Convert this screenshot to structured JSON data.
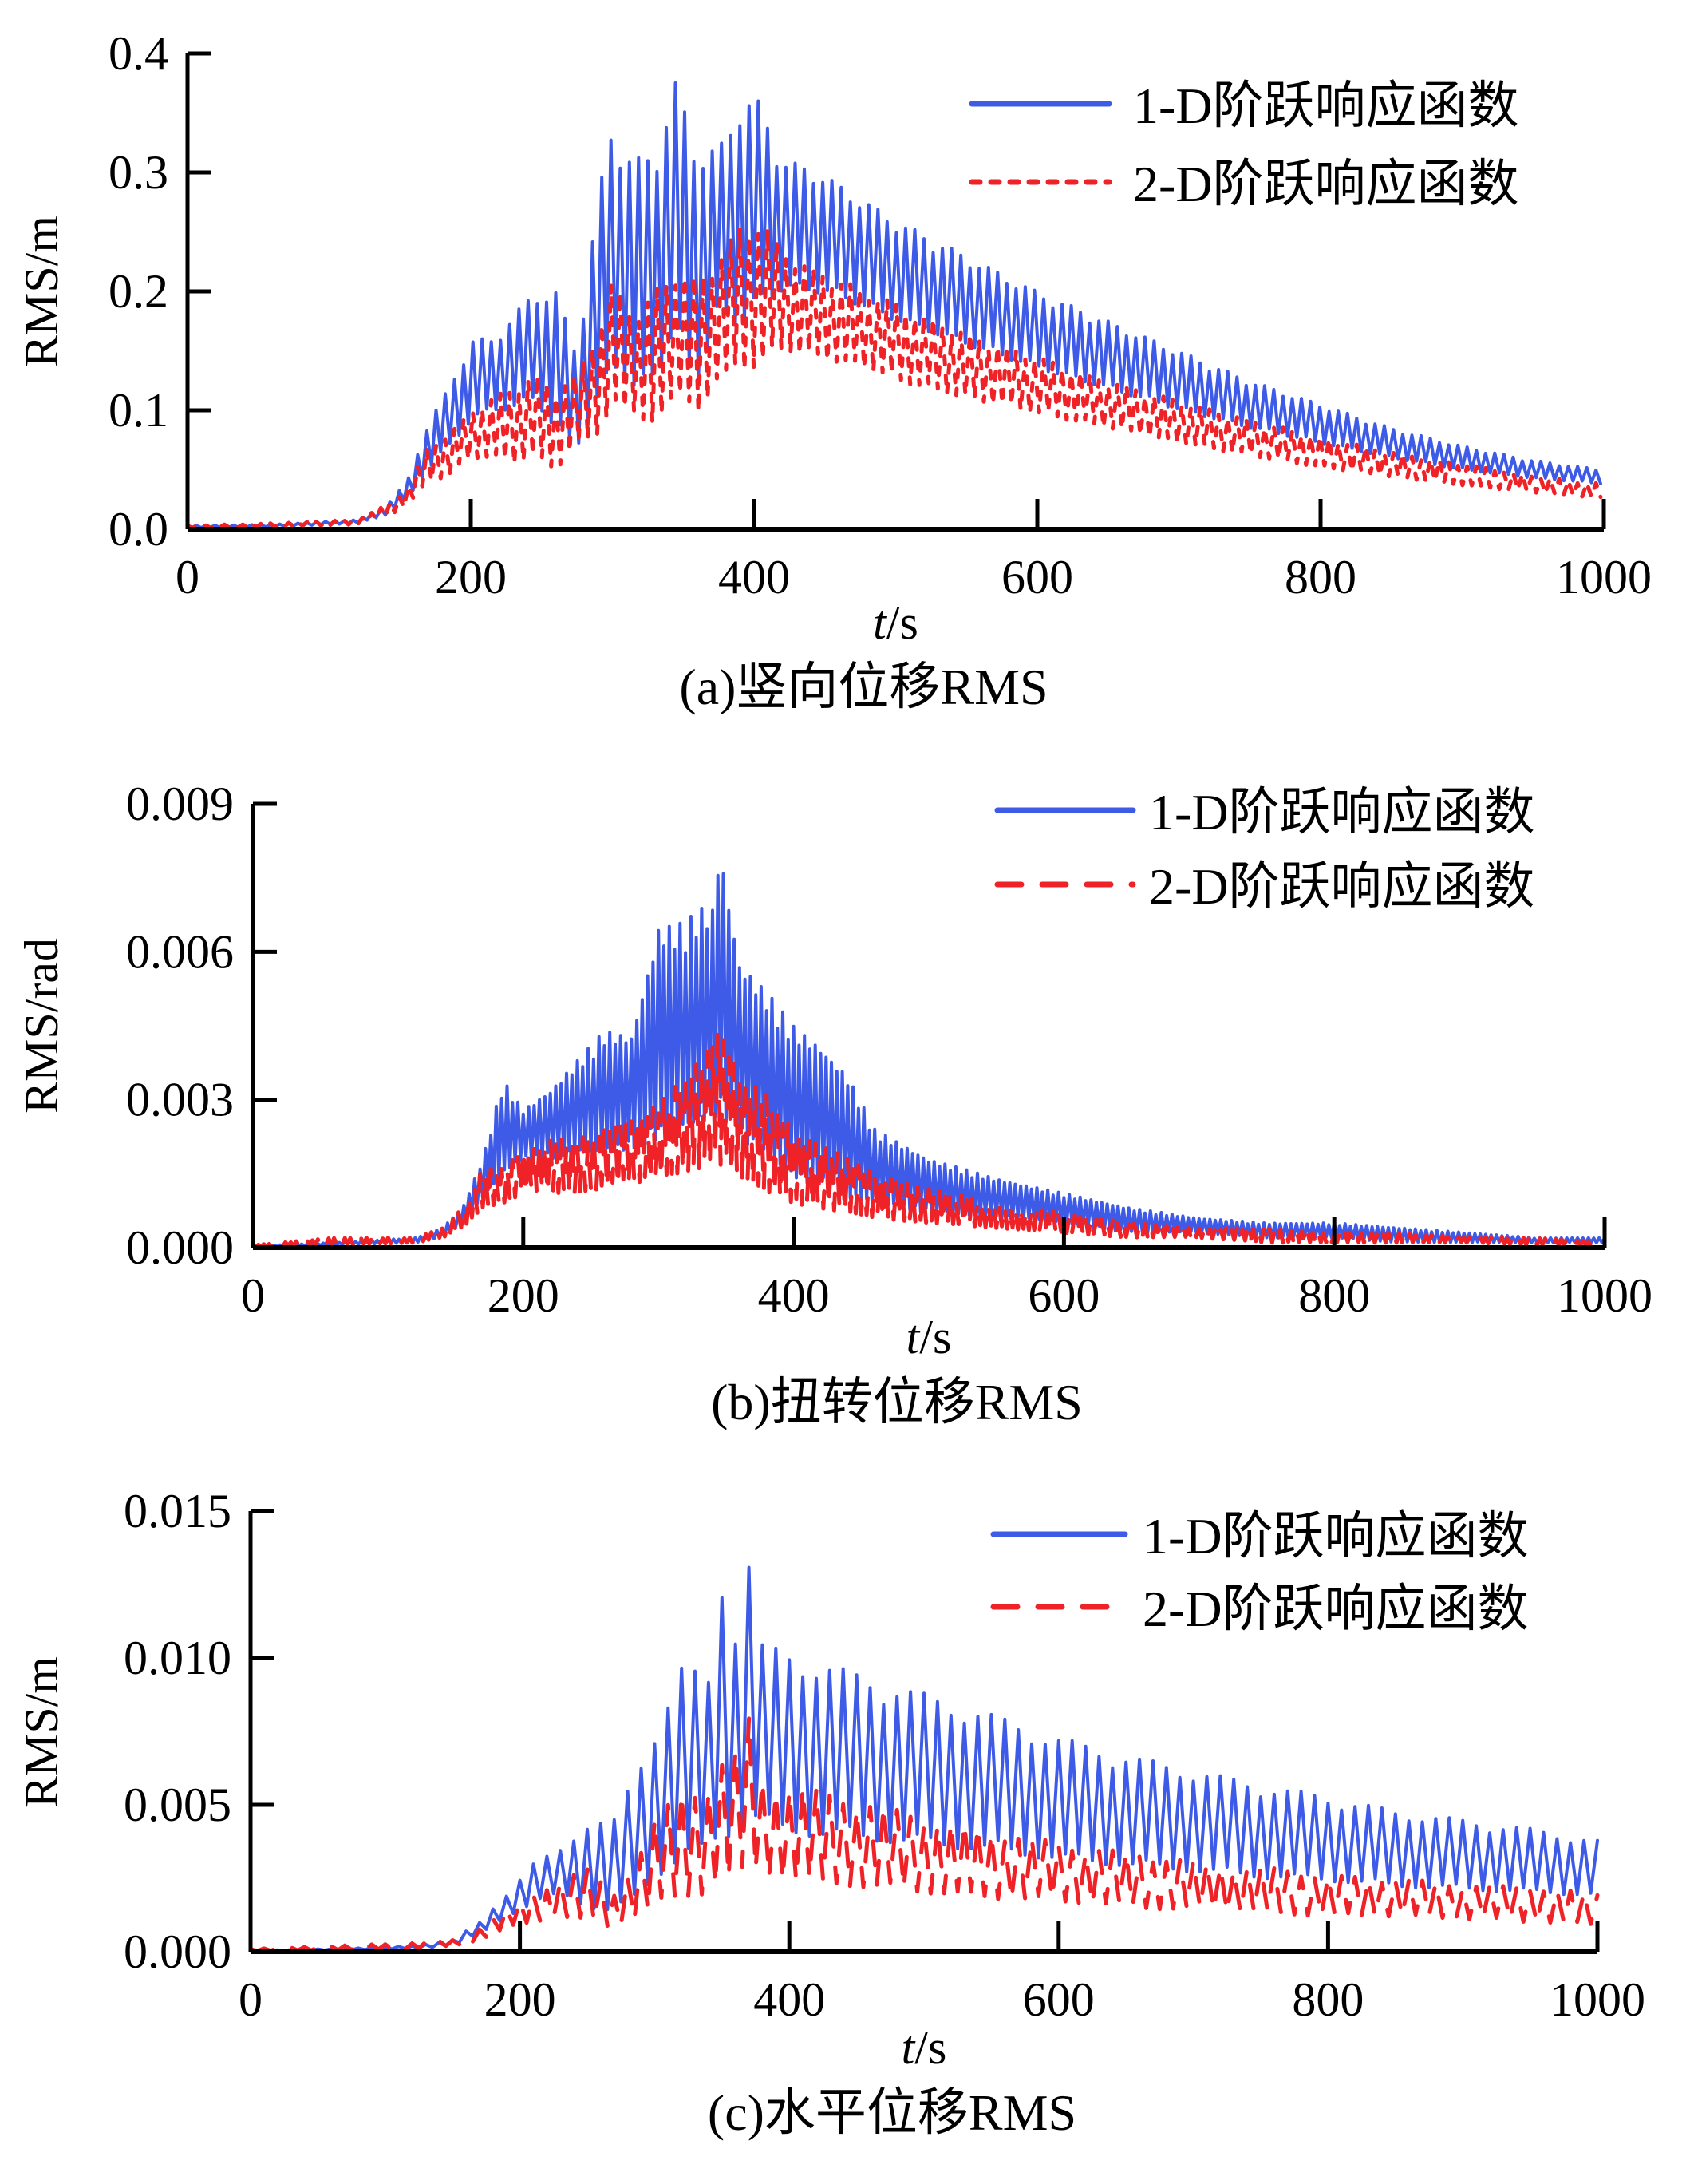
{
  "figure": {
    "legend_labels": [
      "1-D阶跃响应函数",
      "2-D阶跃响应函数"
    ],
    "colors": {
      "series_1d": "#3e5be8",
      "series_2d": "#ee2227",
      "axis": "#000000"
    }
  },
  "chart_data": [
    {
      "id": "a",
      "type": "line",
      "caption": "(a)竖向位移RMS",
      "xlabel_italic": "t",
      "xlabel_unit": "/s",
      "ylabel": "RMS/m",
      "xlim": [
        0,
        1000
      ],
      "ylim": [
        0,
        0.4
      ],
      "xticks": [
        0,
        200,
        400,
        600,
        800,
        1000
      ],
      "xtick_labels": [
        "0",
        "200",
        "400",
        "600",
        "800",
        "1000"
      ],
      "yticks": [
        0,
        0.1,
        0.2,
        0.3,
        0.4
      ],
      "ytick_labels": [
        "0.0",
        "0.1",
        "0.2",
        "0.3",
        "0.4"
      ],
      "legend_position": "top-right",
      "oscillation_period_s": 6.5,
      "x": [
        0,
        60,
        120,
        140,
        155,
        170,
        185,
        200,
        215,
        230,
        245,
        260,
        275,
        290,
        300,
        315,
        330,
        345,
        360,
        375,
        390,
        405,
        420,
        440,
        460,
        480,
        500,
        550,
        600,
        650,
        700,
        750,
        800,
        850,
        900,
        950,
        1000
      ],
      "series": [
        {
          "name": "1-D阶跃响应函数",
          "style": "solid",
          "upper": [
            0.003,
            0.004,
            0.008,
            0.02,
            0.04,
            0.09,
            0.12,
            0.16,
            0.16,
            0.18,
            0.2,
            0.2,
            0.15,
            0.28,
            0.345,
            0.31,
            0.32,
            0.378,
            0.32,
            0.32,
            0.362,
            0.36,
            0.31,
            0.305,
            0.29,
            0.275,
            0.26,
            0.23,
            0.2,
            0.175,
            0.15,
            0.125,
            0.105,
            0.085,
            0.07,
            0.058,
            0.05
          ],
          "lower": [
            0.001,
            0.002,
            0.005,
            0.012,
            0.025,
            0.05,
            0.07,
            0.09,
            0.1,
            0.1,
            0.11,
            0.08,
            0.07,
            0.1,
            0.14,
            0.11,
            0.13,
            0.16,
            0.12,
            0.18,
            0.17,
            0.19,
            0.2,
            0.2,
            0.195,
            0.185,
            0.175,
            0.155,
            0.135,
            0.118,
            0.1,
            0.085,
            0.072,
            0.06,
            0.05,
            0.043,
            0.038
          ]
        },
        {
          "name": "2-D阶跃响应函数",
          "style": "dotted",
          "upper": [
            0.003,
            0.005,
            0.008,
            0.02,
            0.035,
            0.07,
            0.08,
            0.1,
            0.11,
            0.12,
            0.13,
            0.12,
            0.13,
            0.17,
            0.21,
            0.18,
            0.2,
            0.22,
            0.21,
            0.23,
            0.255,
            0.26,
            0.235,
            0.22,
            0.21,
            0.2,
            0.19,
            0.165,
            0.145,
            0.125,
            0.108,
            0.092,
            0.078,
            0.065,
            0.055,
            0.045,
            0.038
          ],
          "lower": [
            0.001,
            0.002,
            0.004,
            0.01,
            0.02,
            0.04,
            0.045,
            0.06,
            0.06,
            0.055,
            0.06,
            0.05,
            0.07,
            0.08,
            0.1,
            0.1,
            0.08,
            0.12,
            0.09,
            0.13,
            0.13,
            0.14,
            0.15,
            0.145,
            0.14,
            0.135,
            0.125,
            0.11,
            0.097,
            0.085,
            0.072,
            0.062,
            0.052,
            0.044,
            0.037,
            0.031,
            0.026
          ]
        }
      ]
    },
    {
      "id": "b",
      "type": "line",
      "caption": "(b)扭转位移RMS",
      "xlabel_italic": "t",
      "xlabel_unit": "/s",
      "ylabel": "RMS/rad",
      "xlim": [
        0,
        1000
      ],
      "ylim": [
        0,
        0.009
      ],
      "xticks": [
        0,
        200,
        400,
        600,
        800,
        1000
      ],
      "xtick_labels": [
        "0",
        "200",
        "400",
        "600",
        "800",
        "1000"
      ],
      "yticks": [
        0,
        0.003,
        0.006,
        0.009
      ],
      "ytick_labels": [
        "0.000",
        "0.003",
        "0.006",
        "0.009"
      ],
      "legend_position": "top-right",
      "oscillation_period_s": 4,
      "x": [
        0,
        60,
        120,
        140,
        155,
        170,
        185,
        200,
        220,
        240,
        260,
        280,
        300,
        320,
        330,
        340,
        345,
        360,
        380,
        400,
        420,
        440,
        460,
        500,
        550,
        600,
        650,
        700,
        750,
        800,
        850,
        900,
        950,
        1000
      ],
      "series": [
        {
          "name": "1-D阶跃响应函数",
          "style": "solid",
          "upper": [
            3e-05,
            0.0001,
            0.0002,
            0.0004,
            0.0008,
            0.0018,
            0.0034,
            0.0028,
            0.0032,
            0.0038,
            0.0044,
            0.0043,
            0.0065,
            0.0066,
            0.0069,
            0.0069,
            0.0082,
            0.0058,
            0.0052,
            0.0045,
            0.0041,
            0.0035,
            0.0024,
            0.0018,
            0.0014,
            0.0011,
            0.0008,
            0.0006,
            0.0005,
            0.0005,
            0.0004,
            0.0003,
            0.0002,
            0.0002
          ],
          "lower": [
            1e-05,
            5e-05,
            0.0001,
            0.0002,
            0.0005,
            0.001,
            0.0015,
            0.0018,
            0.0018,
            0.0019,
            0.0019,
            0.002,
            0.0022,
            0.0024,
            0.0025,
            0.0026,
            0.0027,
            0.0022,
            0.0018,
            0.0014,
            0.0012,
            0.001,
            0.0009,
            0.0007,
            0.0006,
            0.0005,
            0.0003,
            0.0003,
            0.0002,
            0.0002,
            0.0001,
            0.0001,
            0.0001,
            0.0001
          ]
        },
        {
          "name": "2-D阶跃响应函数",
          "style": "dashed",
          "upper": [
            5e-05,
            0.0002,
            0.0002,
            0.0004,
            0.0008,
            0.0016,
            0.0016,
            0.002,
            0.0022,
            0.0022,
            0.0024,
            0.0026,
            0.0029,
            0.0035,
            0.0038,
            0.0042,
            0.0045,
            0.0035,
            0.0031,
            0.0024,
            0.0021,
            0.0018,
            0.0015,
            0.0012,
            0.0009,
            0.0007,
            0.0005,
            0.0004,
            0.0004,
            0.0003,
            0.0003,
            0.0002,
            0.0002,
            0.0001
          ],
          "lower": [
            1e-05,
            5e-05,
            0.0001,
            0.0002,
            0.0004,
            0.0008,
            0.0009,
            0.0011,
            0.0011,
            0.0011,
            0.0012,
            0.0013,
            0.0014,
            0.0015,
            0.0016,
            0.0017,
            0.0017,
            0.0014,
            0.0011,
            0.0009,
            0.0008,
            0.0007,
            0.0006,
            0.0005,
            0.0004,
            0.0003,
            0.0002,
            0.0002,
            0.0001,
            0.0001,
            0.0001,
            0.0001,
            5e-05,
            5e-05
          ]
        }
      ]
    },
    {
      "id": "c",
      "type": "line",
      "caption": "(c)水平位移RMS",
      "xlabel_italic": "t",
      "xlabel_unit": "/s",
      "ylabel": "RMS/m",
      "xlim": [
        0,
        1000
      ],
      "ylim": [
        0,
        0.015
      ],
      "xticks": [
        0,
        200,
        400,
        600,
        800,
        1000
      ],
      "xtick_labels": [
        "0",
        "200",
        "400",
        "600",
        "800",
        "1000"
      ],
      "yticks": [
        0,
        0.005,
        0.01,
        0.015
      ],
      "ytick_labels": [
        "0.000",
        "0.005",
        "0.010",
        "0.015"
      ],
      "legend_position": "top-right",
      "oscillation_period_s": 10,
      "x": [
        0,
        60,
        120,
        150,
        170,
        190,
        210,
        230,
        250,
        270,
        290,
        300,
        320,
        340,
        350,
        360,
        370,
        380,
        400,
        450,
        500,
        550,
        600,
        650,
        700,
        750,
        800,
        850,
        900,
        950,
        1000
      ],
      "series": [
        {
          "name": "1-D阶跃响应函数",
          "style": "solid",
          "upper": [
            5e-05,
            0.0001,
            0.0002,
            0.0004,
            0.001,
            0.002,
            0.003,
            0.0035,
            0.0045,
            0.0045,
            0.0065,
            0.0078,
            0.0098,
            0.0093,
            0.0128,
            0.0115,
            0.0136,
            0.0105,
            0.0102,
            0.0095,
            0.0088,
            0.0081,
            0.0073,
            0.0067,
            0.0062,
            0.0057,
            0.0053,
            0.0048,
            0.0045,
            0.0042,
            0.0038
          ],
          "lower": [
            2e-05,
            5e-05,
            0.0001,
            0.0002,
            0.0006,
            0.0012,
            0.0016,
            0.002,
            0.0015,
            0.0012,
            0.002,
            0.0025,
            0.003,
            0.0034,
            0.004,
            0.0038,
            0.0045,
            0.0042,
            0.004,
            0.0038,
            0.0036,
            0.0034,
            0.0031,
            0.0029,
            0.0027,
            0.0025,
            0.0024,
            0.0022,
            0.0021,
            0.002,
            0.0019
          ]
        },
        {
          "name": "2-D阶跃响应函数",
          "style": "dashed",
          "upper": [
            0.0001,
            0.0002,
            0.0003,
            0.0004,
            0.0008,
            0.0015,
            0.002,
            0.0025,
            0.0028,
            0.002,
            0.0035,
            0.0045,
            0.0055,
            0.0058,
            0.0065,
            0.0068,
            0.008,
            0.006,
            0.0057,
            0.0052,
            0.0046,
            0.0042,
            0.0037,
            0.0034,
            0.0031,
            0.0029,
            0.0026,
            0.0025,
            0.0023,
            0.0022,
            0.002
          ],
          "lower": [
            2e-05,
            5e-05,
            0.0001,
            0.0002,
            0.0004,
            0.0008,
            0.001,
            0.0012,
            0.001,
            0.0008,
            0.0012,
            0.0015,
            0.0018,
            0.002,
            0.0025,
            0.0022,
            0.0028,
            0.0026,
            0.0024,
            0.0022,
            0.002,
            0.0018,
            0.0017,
            0.0015,
            0.0014,
            0.0013,
            0.0012,
            0.0012,
            0.0011,
            0.001,
            0.0009
          ]
        }
      ]
    }
  ]
}
